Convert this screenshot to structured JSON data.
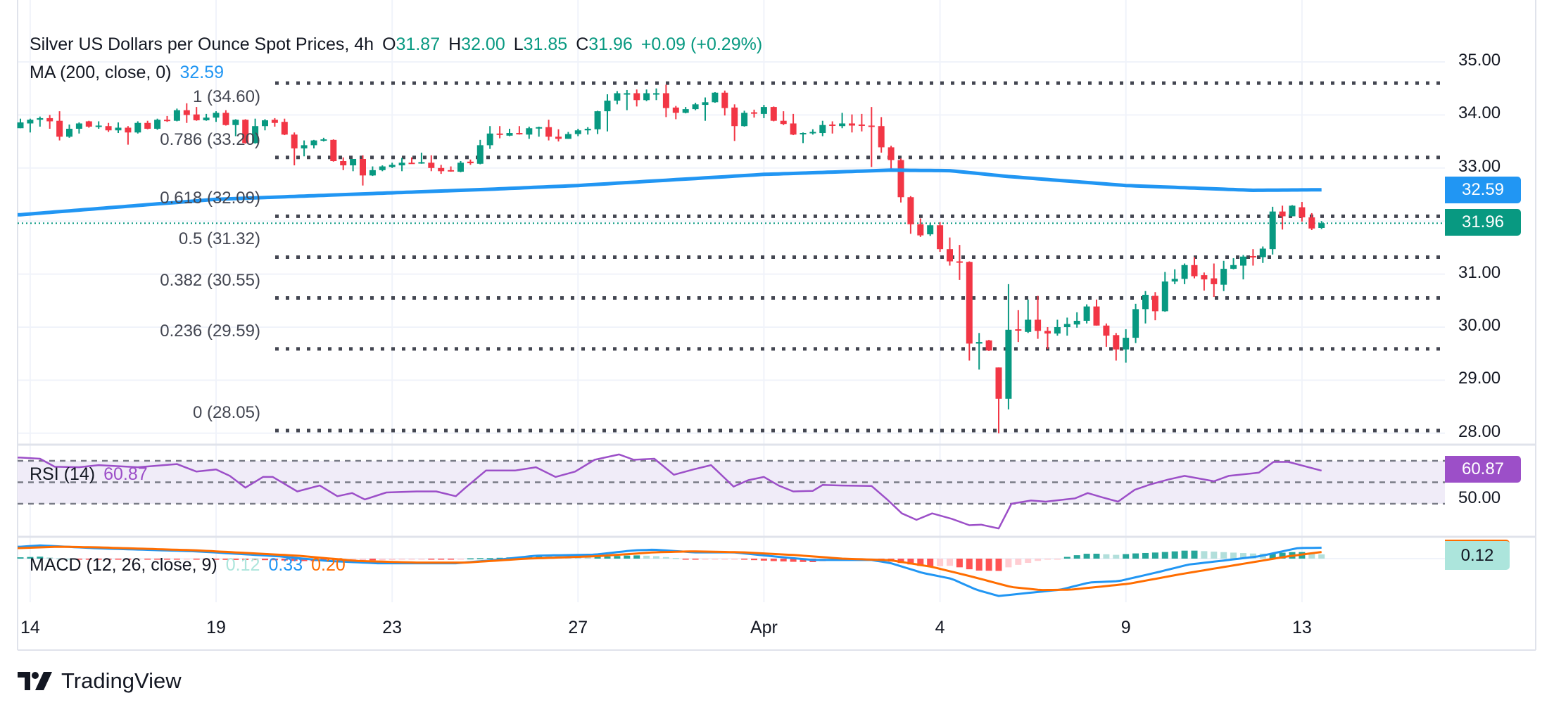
{
  "header": {
    "title": "Silver US Dollars per Ounce Spot Prices, 4h",
    "open_label": "O",
    "open": "31.87",
    "high_label": "H",
    "high": "32.00",
    "low_label": "L",
    "low": "31.85",
    "close_label": "C",
    "close": "31.96",
    "change": "+0.09 (+0.29%)"
  },
  "ma_legend": {
    "label": "MA (200, close, 0)",
    "value": "32.59"
  },
  "price_axis": {
    "ticks": [
      {
        "label": "35.00",
        "value": 35
      },
      {
        "label": "34.00",
        "value": 34
      },
      {
        "label": "33.00",
        "value": 33
      },
      {
        "label": "31.00",
        "value": 31
      },
      {
        "label": "30.00",
        "value": 30
      },
      {
        "label": "29.00",
        "value": 29
      },
      {
        "label": "28.00",
        "value": 28
      }
    ],
    "ma_tag": "32.59",
    "last_price_tag": "31.96"
  },
  "fib_levels": [
    {
      "label": "1 (34.60)",
      "price": 34.6
    },
    {
      "label": "0.786 (33.20)",
      "price": 33.2
    },
    {
      "label": "0.618 (32.09)",
      "price": 32.09
    },
    {
      "label": "0.5 (31.32)",
      "price": 31.32
    },
    {
      "label": "0.382 (30.55)",
      "price": 30.55
    },
    {
      "label": "0.236 (29.59)",
      "price": 29.59
    },
    {
      "label": "0 (28.05)",
      "price": 28.05
    }
  ],
  "rsi": {
    "label": "RSI (14)",
    "value": "60.87",
    "axis_label": "50.00",
    "tag": "60.87",
    "levels": [
      70,
      50,
      30
    ]
  },
  "macd": {
    "label": "MACD (12, 26, close, 9)",
    "hist": "0.12",
    "macd": "0.33",
    "signal": "0.20",
    "tag": "0.12"
  },
  "time_axis": [
    {
      "label": "14",
      "index": 2
    },
    {
      "label": "19",
      "index": 21
    },
    {
      "label": "23",
      "index": 39
    },
    {
      "label": "27",
      "index": 58
    },
    {
      "label": "Apr",
      "index": 77
    },
    {
      "label": "4",
      "index": 95
    },
    {
      "label": "9",
      "index": 114
    },
    {
      "label": "13",
      "index": 132
    }
  ],
  "logo": {
    "text": "TradingView"
  },
  "colors": {
    "up": "#089981",
    "down": "#F23645",
    "ma": "#2196F3",
    "rsi": "#9C4FC8",
    "rsi_band": "#F0ECF8",
    "macd": "#2196F3",
    "signal": "#FF6D00",
    "hist_up_grow": "#26A69A",
    "hist_up_fall": "#B2DFDB",
    "hist_down_fall": "#FF5252",
    "hist_down_rise": "#FFCDD2",
    "fib": "#434651"
  },
  "chart_data": {
    "type": "candlestick",
    "title": "Silver US Dollars per Ounce Spot Prices, 4h",
    "ylim": [
      27.6,
      35.6
    ],
    "grid": true,
    "candles_ohlc": [
      [
        33.75,
        33.93,
        33.75,
        33.86
      ],
      [
        33.84,
        33.93,
        33.67,
        33.91
      ],
      [
        33.91,
        33.97,
        33.78,
        33.94
      ],
      [
        33.94,
        34.0,
        33.74,
        33.88
      ],
      [
        33.89,
        34.07,
        33.52,
        33.59
      ],
      [
        33.59,
        33.82,
        33.57,
        33.74
      ],
      [
        33.74,
        33.86,
        33.65,
        33.84
      ],
      [
        33.88,
        33.89,
        33.76,
        33.78
      ],
      [
        33.79,
        33.88,
        33.74,
        33.8
      ],
      [
        33.79,
        33.85,
        33.68,
        33.71
      ],
      [
        33.71,
        33.86,
        33.66,
        33.76
      ],
      [
        33.76,
        33.79,
        33.44,
        33.67
      ],
      [
        33.67,
        33.88,
        33.65,
        33.85
      ],
      [
        33.85,
        33.89,
        33.73,
        33.74
      ],
      [
        33.74,
        33.93,
        33.72,
        33.91
      ],
      [
        33.91,
        33.98,
        33.87,
        33.89
      ],
      [
        33.89,
        34.12,
        33.88,
        34.09
      ],
      [
        34.09,
        34.22,
        33.85,
        34.0
      ],
      [
        34.01,
        34.15,
        33.89,
        33.9
      ],
      [
        33.9,
        34.02,
        33.89,
        33.95
      ],
      [
        33.95,
        34.07,
        33.87,
        34.04
      ],
      [
        34.04,
        34.09,
        33.8,
        33.81
      ],
      [
        33.81,
        33.92,
        33.6,
        33.91
      ],
      [
        33.91,
        33.92,
        33.46,
        33.47
      ],
      [
        33.47,
        33.93,
        33.46,
        33.79
      ],
      [
        33.79,
        33.92,
        33.71,
        33.9
      ],
      [
        33.91,
        33.94,
        33.78,
        33.85
      ],
      [
        33.87,
        33.93,
        33.62,
        33.63
      ],
      [
        33.63,
        33.67,
        33.05,
        33.37
      ],
      [
        33.37,
        33.52,
        33.22,
        33.43
      ],
      [
        33.43,
        33.53,
        33.37,
        33.52
      ],
      [
        33.52,
        33.57,
        33.5,
        33.54
      ],
      [
        33.53,
        33.54,
        33.12,
        33.13
      ],
      [
        33.13,
        33.2,
        32.96,
        33.05
      ],
      [
        33.05,
        33.17,
        32.94,
        33.17
      ],
      [
        33.17,
        33.24,
        32.67,
        32.86
      ],
      [
        32.86,
        33.03,
        32.85,
        32.96
      ],
      [
        32.96,
        33.05,
        32.94,
        33.03
      ],
      [
        33.02,
        33.1,
        33.0,
        33.06
      ],
      [
        33.05,
        33.19,
        32.94,
        33.1
      ],
      [
        33.1,
        33.2,
        33.08,
        33.09
      ],
      [
        33.09,
        33.29,
        33.08,
        33.11
      ],
      [
        33.1,
        33.24,
        32.94,
        33.0
      ],
      [
        33.0,
        33.06,
        32.89,
        32.94
      ],
      [
        32.96,
        33.03,
        32.93,
        32.94
      ],
      [
        32.93,
        33.13,
        32.92,
        33.1
      ],
      [
        33.12,
        33.16,
        33.06,
        33.09
      ],
      [
        33.08,
        33.53,
        33.07,
        33.43
      ],
      [
        33.43,
        33.79,
        33.36,
        33.65
      ],
      [
        33.65,
        33.79,
        33.56,
        33.63
      ],
      [
        33.61,
        33.74,
        33.6,
        33.66
      ],
      [
        33.66,
        33.79,
        33.63,
        33.64
      ],
      [
        33.63,
        33.78,
        33.55,
        33.75
      ],
      [
        33.75,
        33.78,
        33.59,
        33.77
      ],
      [
        33.77,
        33.91,
        33.52,
        33.59
      ],
      [
        33.59,
        33.73,
        33.5,
        33.55
      ],
      [
        33.55,
        33.68,
        33.55,
        33.64
      ],
      [
        33.64,
        33.74,
        33.6,
        33.71
      ],
      [
        33.71,
        33.77,
        33.63,
        33.74
      ],
      [
        33.73,
        34.08,
        33.64,
        34.07
      ],
      [
        34.07,
        34.39,
        33.69,
        34.27
      ],
      [
        34.27,
        34.45,
        34.2,
        34.41
      ],
      [
        34.4,
        34.47,
        34.09,
        34.41
      ],
      [
        34.41,
        34.48,
        34.16,
        34.28
      ],
      [
        34.28,
        34.48,
        34.26,
        34.41
      ],
      [
        34.4,
        34.5,
        34.28,
        34.41
      ],
      [
        34.41,
        34.57,
        33.96,
        34.13
      ],
      [
        34.14,
        34.17,
        33.92,
        34.04
      ],
      [
        34.04,
        34.15,
        34.03,
        34.11
      ],
      [
        34.11,
        34.23,
        34.09,
        34.2
      ],
      [
        34.19,
        34.33,
        33.89,
        34.24
      ],
      [
        34.24,
        34.43,
        34.23,
        34.42
      ],
      [
        34.42,
        34.46,
        33.99,
        34.13
      ],
      [
        34.14,
        34.2,
        33.51,
        33.79
      ],
      [
        33.79,
        34.08,
        33.78,
        34.04
      ],
      [
        34.05,
        34.1,
        33.95,
        34.03
      ],
      [
        34.02,
        34.19,
        33.94,
        34.15
      ],
      [
        34.15,
        34.16,
        33.88,
        33.89
      ],
      [
        33.89,
        34.07,
        33.81,
        33.83
      ],
      [
        33.84,
        34.02,
        33.62,
        33.63
      ],
      [
        33.64,
        33.67,
        33.47,
        33.66
      ],
      [
        33.66,
        33.73,
        33.63,
        33.68
      ],
      [
        33.66,
        33.89,
        33.6,
        33.81
      ],
      [
        33.82,
        33.88,
        33.65,
        33.8
      ],
      [
        33.79,
        34.04,
        33.75,
        33.84
      ],
      [
        33.84,
        34.01,
        33.67,
        33.8
      ],
      [
        33.82,
        34.02,
        33.69,
        33.8
      ],
      [
        33.8,
        34.15,
        33.02,
        33.79
      ],
      [
        33.79,
        33.96,
        33.29,
        33.39
      ],
      [
        33.39,
        33.42,
        32.96,
        33.15
      ],
      [
        33.15,
        33.18,
        32.35,
        32.45
      ],
      [
        32.45,
        32.47,
        31.76,
        31.94
      ],
      [
        31.94,
        32.05,
        31.7,
        31.73
      ],
      [
        31.75,
        31.97,
        31.72,
        31.92
      ],
      [
        31.92,
        31.98,
        31.42,
        31.47
      ],
      [
        31.47,
        31.69,
        31.16,
        31.24
      ],
      [
        31.24,
        31.55,
        30.89,
        31.22
      ],
      [
        31.23,
        31.24,
        29.37,
        29.69
      ],
      [
        29.69,
        29.89,
        29.2,
        29.72
      ],
      [
        29.75,
        29.76,
        29.55,
        29.56
      ],
      [
        29.24,
        29.24,
        28.0,
        28.65
      ],
      [
        28.65,
        30.81,
        28.45,
        29.95
      ],
      [
        29.96,
        30.32,
        29.72,
        29.94
      ],
      [
        29.91,
        30.52,
        29.89,
        30.14
      ],
      [
        30.14,
        30.59,
        29.78,
        29.93
      ],
      [
        29.93,
        30.0,
        29.59,
        29.88
      ],
      [
        29.88,
        30.14,
        29.84,
        30.0
      ],
      [
        30.0,
        30.18,
        29.84,
        30.06
      ],
      [
        30.05,
        30.28,
        29.99,
        30.12
      ],
      [
        30.12,
        30.43,
        30.07,
        30.39
      ],
      [
        30.39,
        30.52,
        30.03,
        30.03
      ],
      [
        30.03,
        30.07,
        29.63,
        29.84
      ],
      [
        29.85,
        29.89,
        29.37,
        29.58
      ],
      [
        29.58,
        29.96,
        29.33,
        29.8
      ],
      [
        29.8,
        30.44,
        29.7,
        30.34
      ],
      [
        30.34,
        30.68,
        30.07,
        30.61
      ],
      [
        30.59,
        30.66,
        30.13,
        30.3
      ],
      [
        30.3,
        31.04,
        30.29,
        30.86
      ],
      [
        30.86,
        31.09,
        30.81,
        30.91
      ],
      [
        30.91,
        31.2,
        30.81,
        31.17
      ],
      [
        31.17,
        31.32,
        30.92,
        30.96
      ],
      [
        30.98,
        31.03,
        30.69,
        30.9
      ],
      [
        30.92,
        31.2,
        30.57,
        30.81
      ],
      [
        30.8,
        31.25,
        30.68,
        31.1
      ],
      [
        31.1,
        31.3,
        31.09,
        31.17
      ],
      [
        31.16,
        31.36,
        30.9,
        31.33
      ],
      [
        31.34,
        31.47,
        31.16,
        31.33
      ],
      [
        31.32,
        31.52,
        31.21,
        31.48
      ],
      [
        31.47,
        32.27,
        31.37,
        32.18
      ],
      [
        32.18,
        32.29,
        31.84,
        32.09
      ],
      [
        32.09,
        32.3,
        32.09,
        32.29
      ],
      [
        32.26,
        32.36,
        31.99,
        32.07
      ],
      [
        32.07,
        32.15,
        31.83,
        31.86
      ],
      [
        31.87,
        32.0,
        31.85,
        31.96
      ]
    ],
    "ma200": [
      [
        1,
        32.12
      ],
      [
        21,
        32.41
      ],
      [
        49,
        32.6
      ],
      [
        58,
        32.67
      ],
      [
        77,
        32.88
      ],
      [
        90,
        32.96
      ],
      [
        96,
        32.95
      ],
      [
        102,
        32.84
      ],
      [
        114,
        32.67
      ],
      [
        127,
        32.58
      ],
      [
        134,
        32.59
      ]
    ],
    "rsi_ylim": [
      0,
      100
    ],
    "rsi_points": [
      [
        1,
        73
      ],
      [
        3,
        72
      ],
      [
        4.5,
        64.5
      ],
      [
        7,
        64
      ],
      [
        9,
        66
      ],
      [
        13,
        64
      ],
      [
        17,
        67
      ],
      [
        19,
        60
      ],
      [
        21,
        62
      ],
      [
        22.4,
        56
      ],
      [
        24,
        45
      ],
      [
        25.8,
        55
      ],
      [
        26.8,
        55
      ],
      [
        29.3,
        41.5
      ],
      [
        31.6,
        47
      ],
      [
        33.4,
        37
      ],
      [
        34.9,
        40
      ],
      [
        36.2,
        34
      ],
      [
        38.4,
        40.5
      ],
      [
        41.5,
        41.5
      ],
      [
        43.5,
        41.5
      ],
      [
        45.5,
        37
      ],
      [
        46.5,
        45
      ],
      [
        48.6,
        61
      ],
      [
        51.6,
        61
      ],
      [
        53.7,
        64
      ],
      [
        55.7,
        55
      ],
      [
        57.7,
        60
      ],
      [
        59.7,
        71
      ],
      [
        62.2,
        76
      ],
      [
        63.7,
        71
      ],
      [
        65.8,
        72
      ],
      [
        67.8,
        57
      ],
      [
        69.8,
        62
      ],
      [
        71.6,
        66
      ],
      [
        73.9,
        46
      ],
      [
        75.4,
        52
      ],
      [
        77,
        55
      ],
      [
        78.5,
        47
      ],
      [
        80,
        41.5
      ],
      [
        82,
        42
      ],
      [
        83,
        47.5
      ],
      [
        85,
        47
      ],
      [
        88,
        46.6
      ],
      [
        89.6,
        34
      ],
      [
        91.1,
        21
      ],
      [
        92.6,
        15
      ],
      [
        94.2,
        21
      ],
      [
        96.2,
        16
      ],
      [
        98,
        10
      ],
      [
        99.2,
        10.5
      ],
      [
        101,
        7
      ],
      [
        102.3,
        30
      ],
      [
        104.3,
        33
      ],
      [
        105.8,
        32
      ],
      [
        107.8,
        34
      ],
      [
        108.8,
        35
      ],
      [
        110.1,
        40
      ],
      [
        111.6,
        36
      ],
      [
        113.2,
        32
      ],
      [
        114.9,
        43
      ],
      [
        116.5,
        48
      ],
      [
        118.3,
        52.5
      ],
      [
        120,
        56
      ],
      [
        123,
        51
      ],
      [
        124.5,
        56
      ],
      [
        127.6,
        59
      ],
      [
        129.1,
        69
      ],
      [
        130.6,
        69
      ],
      [
        134,
        60.87
      ]
    ],
    "macd_points": [
      [
        1,
        0.36
      ],
      [
        3,
        0.4
      ],
      [
        9,
        0.31
      ],
      [
        19,
        0.22
      ],
      [
        27.4,
        0.07
      ],
      [
        32.4,
        -0.07
      ],
      [
        37.5,
        -0.14
      ],
      [
        45.5,
        -0.14
      ],
      [
        49.6,
        -0.04
      ],
      [
        53.7,
        0.09
      ],
      [
        59.7,
        0.12
      ],
      [
        63.7,
        0.25
      ],
      [
        65.8,
        0.27
      ],
      [
        69.8,
        0.19
      ],
      [
        73.9,
        0.19
      ],
      [
        77.9,
        0.07
      ],
      [
        82,
        -0.04
      ],
      [
        88,
        -0.04
      ],
      [
        90,
        -0.14
      ],
      [
        93.2,
        -0.43
      ],
      [
        96.2,
        -0.61
      ],
      [
        98.7,
        -0.94
      ],
      [
        101,
        -1.13
      ],
      [
        104.3,
        -1.03
      ],
      [
        107.3,
        -0.94
      ],
      [
        110.3,
        -0.72
      ],
      [
        113.3,
        -0.68
      ],
      [
        117.4,
        -0.4
      ],
      [
        120.4,
        -0.18
      ],
      [
        124.5,
        -0.04
      ],
      [
        127.6,
        0.07
      ],
      [
        131.6,
        0.32
      ],
      [
        134,
        0.33
      ]
    ],
    "signal_points": [
      [
        1,
        0.32
      ],
      [
        5,
        0.36
      ],
      [
        9,
        0.34
      ],
      [
        19,
        0.25
      ],
      [
        29.3,
        0.09
      ],
      [
        35.4,
        -0.07
      ],
      [
        41.5,
        -0.12
      ],
      [
        46.6,
        -0.12
      ],
      [
        52.7,
        0.0
      ],
      [
        59.7,
        0.07
      ],
      [
        65.8,
        0.19
      ],
      [
        69.8,
        0.22
      ],
      [
        74.9,
        0.19
      ],
      [
        80,
        0.11
      ],
      [
        85,
        0.0
      ],
      [
        90,
        -0.05
      ],
      [
        94.2,
        -0.25
      ],
      [
        98.2,
        -0.54
      ],
      [
        102.3,
        -0.86
      ],
      [
        105.3,
        -0.95
      ],
      [
        108.3,
        -0.94
      ],
      [
        114.3,
        -0.76
      ],
      [
        119.4,
        -0.48
      ],
      [
        125.5,
        -0.18
      ],
      [
        130.6,
        0.07
      ],
      [
        134,
        0.2
      ]
    ]
  }
}
